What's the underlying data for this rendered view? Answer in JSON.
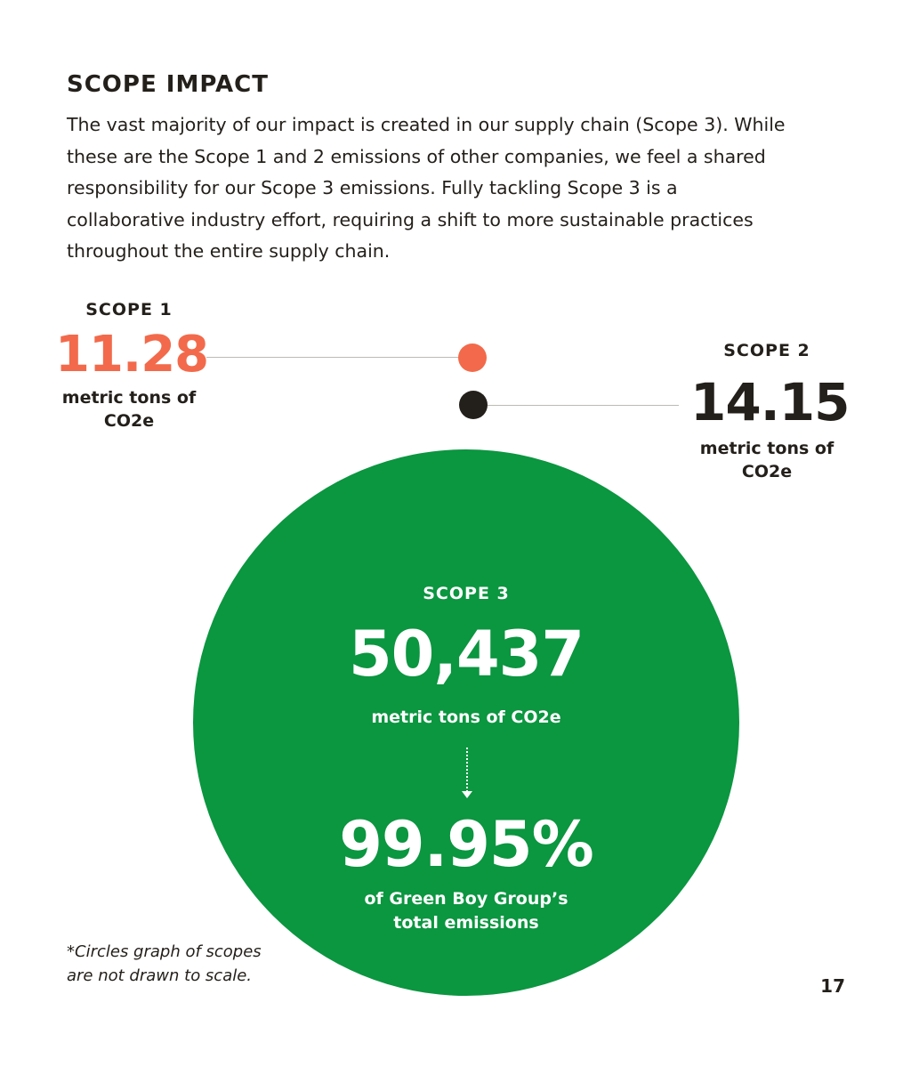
{
  "heading": "SCOPE IMPACT",
  "intro_lines": [
    "The vast majority of our impact is created in our supply chain (Scope 3). While",
    "these are the Scope 1 and 2 emissions of other companies, we feel a shared",
    "responsibility for our Scope 3 emissions. Fully tackling Scope 3 is a",
    "collaborative industry effort, requiring a shift to more sustainable practices",
    "throughout the entire supply chain."
  ],
  "scope1": {
    "label": "SCOPE 1",
    "value": "11.28",
    "unit_line1": "metric tons of",
    "unit_line2": "CO2e",
    "color": "#f26a4b"
  },
  "scope2": {
    "label": "SCOPE 2",
    "value": "14.15",
    "unit_line1": "metric tons of",
    "unit_line2": "CO2e",
    "color": "#231f1a"
  },
  "scope3": {
    "label": "SCOPE 3",
    "value": "50,437",
    "unit": "metric tons of CO2e",
    "percent": "99.95%",
    "percent_caption_line1": "of Green Boy Group’s",
    "percent_caption_line2": "total emissions",
    "color": "#0b9640"
  },
  "footnote_line1": "*Circles graph of scopes",
  "footnote_line2": "are not drawn to scale.",
  "page_number": "17"
}
